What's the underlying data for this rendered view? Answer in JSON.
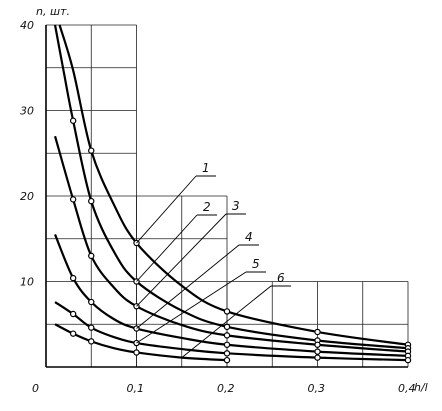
{
  "chart_data": {
    "type": "line",
    "ylabel": "n, шт.",
    "xlabel": "h/l",
    "xlim": [
      0,
      0.4
    ],
    "ylim": [
      0,
      40
    ],
    "x_ticks": [
      "0",
      "0,1",
      "0,2",
      "0,3",
      "0,4"
    ],
    "y_ticks": [
      "10",
      "20",
      "30",
      "40"
    ],
    "grid": [
      {
        "x": [
          0.0,
          0.1
        ],
        "y": [
          0,
          40
        ],
        "step_x": 0.05,
        "step_y": 5
      },
      {
        "x": [
          0.1,
          0.2
        ],
        "y": [
          0,
          20
        ],
        "step_x": 0.05,
        "step_y": 5
      },
      {
        "x": [
          0.2,
          0.4
        ],
        "y": [
          0,
          10
        ],
        "step_x": 0.05,
        "step_y": 5
      }
    ],
    "series": [
      {
        "name": "1",
        "x": [
          0.015,
          0.03,
          0.05,
          0.075,
          0.1,
          0.15,
          0.2,
          0.3,
          0.4
        ],
        "y": [
          40,
          34.7,
          25.3,
          19,
          14.5,
          9.5,
          6.5,
          4.1,
          2.6
        ],
        "markers": [
          0.05,
          0.1,
          0.2,
          0.3,
          0.4
        ]
      },
      {
        "name": "2",
        "x": [
          0.01,
          0.02,
          0.03,
          0.05,
          0.075,
          0.1,
          0.15,
          0.2,
          0.3,
          0.4
        ],
        "y": [
          40,
          34.3,
          28.8,
          19.4,
          13.5,
          10,
          6.6,
          4.7,
          3.1,
          2.2
        ],
        "markers": [
          0.03,
          0.05,
          0.1,
          0.2,
          0.3,
          0.4
        ]
      },
      {
        "name": "3",
        "x": [
          0.01,
          0.03,
          0.05,
          0.075,
          0.1,
          0.15,
          0.2,
          0.3,
          0.4
        ],
        "y": [
          27,
          19.6,
          13,
          9.3,
          7.1,
          4.9,
          3.7,
          2.6,
          1.8
        ],
        "markers": [
          0.03,
          0.05,
          0.1,
          0.2,
          0.3,
          0.4
        ]
      },
      {
        "name": "4",
        "x": [
          0.01,
          0.03,
          0.05,
          0.075,
          0.1,
          0.15,
          0.2,
          0.3,
          0.4
        ],
        "y": [
          15.5,
          10.4,
          7.6,
          5.6,
          4.5,
          3.4,
          2.6,
          1.8,
          1.3
        ],
        "markers": [
          0.03,
          0.05,
          0.1,
          0.2,
          0.3,
          0.4
        ]
      },
      {
        "name": "5",
        "x": [
          0.01,
          0.03,
          0.05,
          0.075,
          0.1,
          0.15,
          0.2,
          0.3,
          0.4
        ],
        "y": [
          7.6,
          6.2,
          4.6,
          3.5,
          2.8,
          2.1,
          1.6,
          1.1,
          0.8
        ],
        "markers": [
          0.03,
          0.05,
          0.1,
          0.2,
          0.3,
          0.4
        ]
      },
      {
        "name": "6",
        "x": [
          0.01,
          0.03,
          0.05,
          0.075,
          0.1,
          0.15,
          0.2
        ],
        "y": [
          5.0,
          3.9,
          3.0,
          2.2,
          1.7,
          1.1,
          0.8
        ],
        "markers": [
          0.03,
          0.05,
          0.1,
          0.2
        ]
      }
    ],
    "curve_labels": [
      {
        "text": "1",
        "at_x": 0.1,
        "at_y": 14.5
      },
      {
        "text": "2",
        "at_x": 0.1,
        "at_y": 10.0
      },
      {
        "text": "3",
        "at_x": 0.1,
        "at_y": 7.1
      },
      {
        "text": "4",
        "at_x": 0.1,
        "at_y": 4.5
      },
      {
        "text": "5",
        "at_x": 0.1,
        "at_y": 2.8
      },
      {
        "text": "6",
        "at_x": 0.15,
        "at_y": 1.1
      }
    ]
  }
}
